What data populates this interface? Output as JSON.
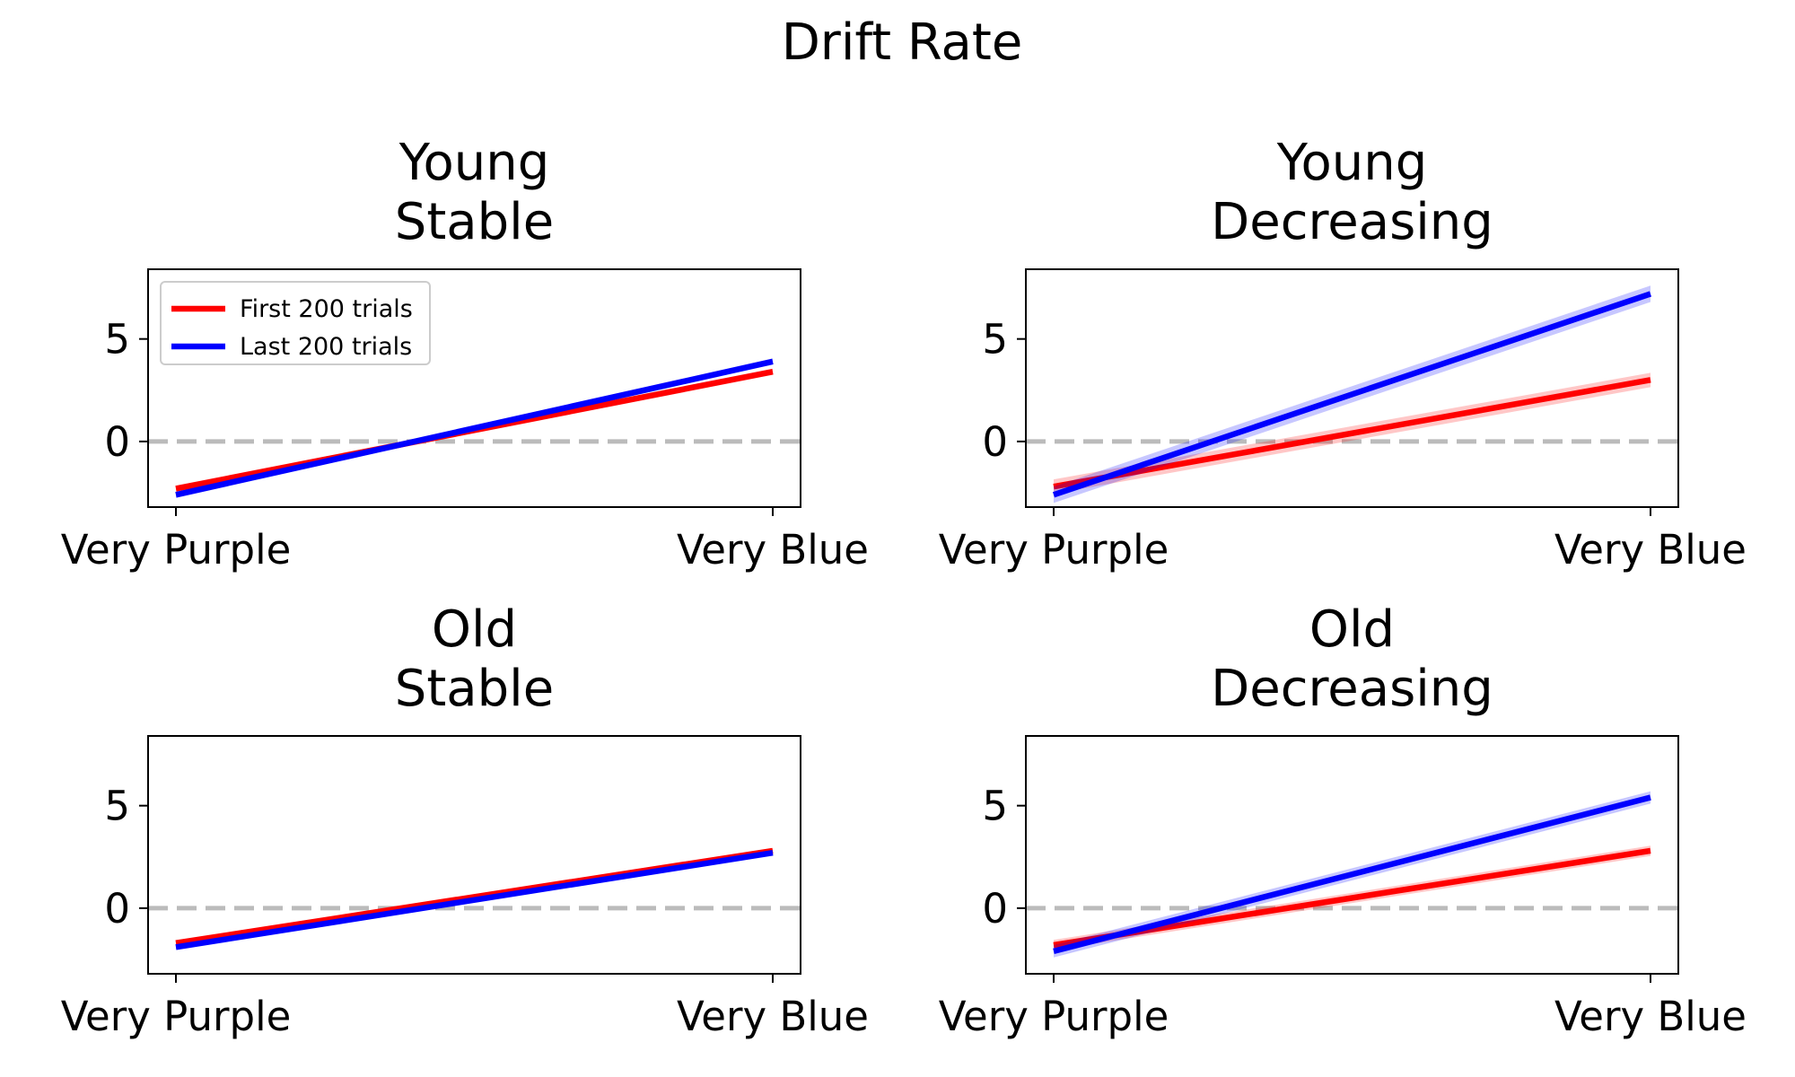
{
  "figure": {
    "title": "Drift Rate"
  },
  "legend": {
    "entries": [
      {
        "label": "First 200 trials",
        "color": "#ff0000"
      },
      {
        "label": "Last 200 trials",
        "color": "#0000ff"
      }
    ],
    "placement": "upper-left",
    "in_panel": 0
  },
  "colors": {
    "first": "#ff0000",
    "last": "#0000ff",
    "zero_line": "#bbbbbb"
  },
  "chart_data": [
    {
      "type": "line",
      "title_lines": [
        "Young",
        "Stable"
      ],
      "x_ticks": [
        "Very Purple",
        "Very Blue"
      ],
      "ylim": [
        -3.2,
        8.4
      ],
      "y_ticks": [
        0,
        5
      ],
      "zero_line": true,
      "series": [
        {
          "name": "First 200 trials",
          "color": "#ff0000",
          "values": [
            -2.3,
            3.4
          ],
          "band": 0.15
        },
        {
          "name": "Last 200 trials",
          "color": "#0000ff",
          "values": [
            -2.6,
            3.9
          ],
          "band": 0.15
        }
      ]
    },
    {
      "type": "line",
      "title_lines": [
        "Young",
        "Decreasing"
      ],
      "x_ticks": [
        "Very Purple",
        "Very Blue"
      ],
      "ylim": [
        -3.2,
        8.4
      ],
      "y_ticks": [
        0,
        5
      ],
      "zero_line": true,
      "series": [
        {
          "name": "First 200 trials",
          "color": "#ff0000",
          "values": [
            -2.2,
            3.0
          ],
          "band": 0.35
        },
        {
          "name": "Last 200 trials",
          "color": "#0000ff",
          "values": [
            -2.6,
            7.2
          ],
          "band": 0.4
        }
      ]
    },
    {
      "type": "line",
      "title_lines": [
        "Old",
        "Stable"
      ],
      "x_ticks": [
        "Very Purple",
        "Very Blue"
      ],
      "ylim": [
        -3.2,
        8.4
      ],
      "y_ticks": [
        0,
        5
      ],
      "zero_line": true,
      "series": [
        {
          "name": "First 200 trials",
          "color": "#ff0000",
          "values": [
            -1.7,
            2.8
          ],
          "band": 0.1
        },
        {
          "name": "Last 200 trials",
          "color": "#0000ff",
          "values": [
            -1.9,
            2.7
          ],
          "band": 0.1
        }
      ]
    },
    {
      "type": "line",
      "title_lines": [
        "Old",
        "Decreasing"
      ],
      "x_ticks": [
        "Very Purple",
        "Very Blue"
      ],
      "ylim": [
        -3.2,
        8.4
      ],
      "y_ticks": [
        0,
        5
      ],
      "zero_line": true,
      "series": [
        {
          "name": "First 200 trials",
          "color": "#ff0000",
          "values": [
            -1.8,
            2.8
          ],
          "band": 0.25
        },
        {
          "name": "Last 200 trials",
          "color": "#0000ff",
          "values": [
            -2.1,
            5.4
          ],
          "band": 0.3
        }
      ]
    }
  ]
}
